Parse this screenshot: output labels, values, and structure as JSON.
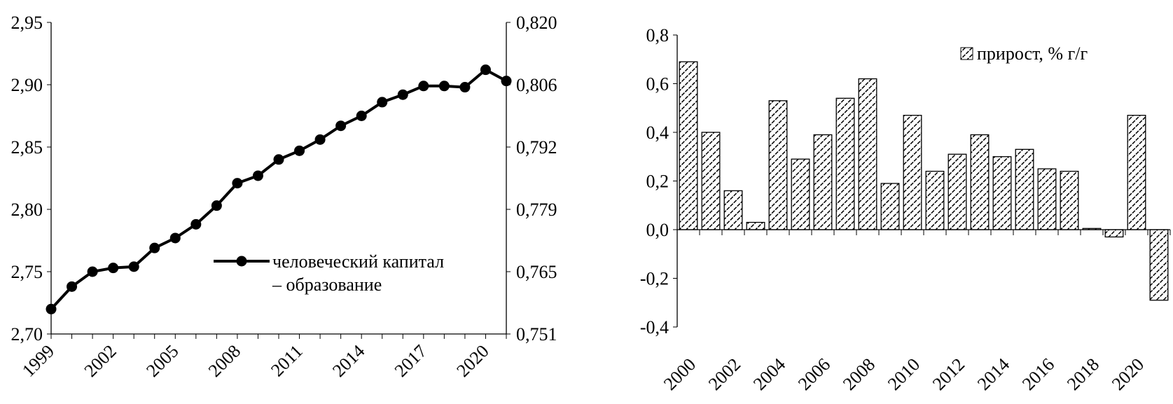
{
  "chart_data": [
    {
      "type": "line",
      "title": "",
      "xlabel": "",
      "ylabel": "",
      "x": [
        1999,
        2000,
        2001,
        2002,
        2003,
        2004,
        2005,
        2006,
        2007,
        2008,
        2009,
        2010,
        2011,
        2012,
        2013,
        2014,
        2015,
        2016,
        2017,
        2018,
        2019,
        2020,
        2021
      ],
      "x_tick_labels": [
        "1999",
        "2002",
        "2005",
        "2008",
        "2011",
        "2014",
        "2017",
        "2020"
      ],
      "series": [
        {
          "name": "человеческий капитал – образование",
          "values": [
            2.72,
            2.738,
            2.75,
            2.753,
            2.754,
            2.769,
            2.777,
            2.788,
            2.803,
            2.821,
            2.827,
            2.84,
            2.847,
            2.856,
            2.867,
            2.875,
            2.886,
            2.892,
            2.899,
            2.899,
            2.898,
            2.912,
            2.903
          ]
        }
      ],
      "ylim": [
        2.7,
        2.95
      ],
      "y_tick_labels": [
        "2,70",
        "2,75",
        "2,80",
        "2,85",
        "2,90",
        "2,95"
      ],
      "y2lim": [
        0.751,
        0.82
      ],
      "y2_tick_labels": [
        "0,751",
        "0,765",
        "0,779",
        "0,792",
        "0,806",
        "0,820"
      ],
      "legend": {
        "line1": "человеческий капитал",
        "line2": "– образование",
        "placement": "center-right"
      },
      "grid": false
    },
    {
      "type": "bar",
      "title": "",
      "xlabel": "",
      "ylabel": "",
      "categories": [
        2000,
        2001,
        2002,
        2003,
        2004,
        2005,
        2006,
        2007,
        2008,
        2009,
        2010,
        2011,
        2012,
        2013,
        2014,
        2015,
        2016,
        2017,
        2018,
        2019,
        2020,
        2021
      ],
      "x_tick_labels": [
        "2000",
        "2002",
        "2004",
        "2006",
        "2008",
        "2010",
        "2012",
        "2014",
        "2016",
        "2018",
        "2020"
      ],
      "series": [
        {
          "name": "прирост, % г/г",
          "values": [
            0.69,
            0.4,
            0.16,
            0.03,
            0.53,
            0.29,
            0.39,
            0.54,
            0.62,
            0.19,
            0.47,
            0.24,
            0.31,
            0.39,
            0.3,
            0.33,
            0.25,
            0.24,
            0.005,
            -0.03,
            0.47,
            -0.29
          ]
        }
      ],
      "ylim": [
        -0.4,
        0.8
      ],
      "y_tick_labels": [
        "-0,4",
        "-0,2",
        "0,0",
        "0,2",
        "0,4",
        "0,6",
        "0,8"
      ],
      "legend": {
        "label": "прирост, % г/г",
        "placement": "top-right"
      },
      "grid": false
    }
  ]
}
